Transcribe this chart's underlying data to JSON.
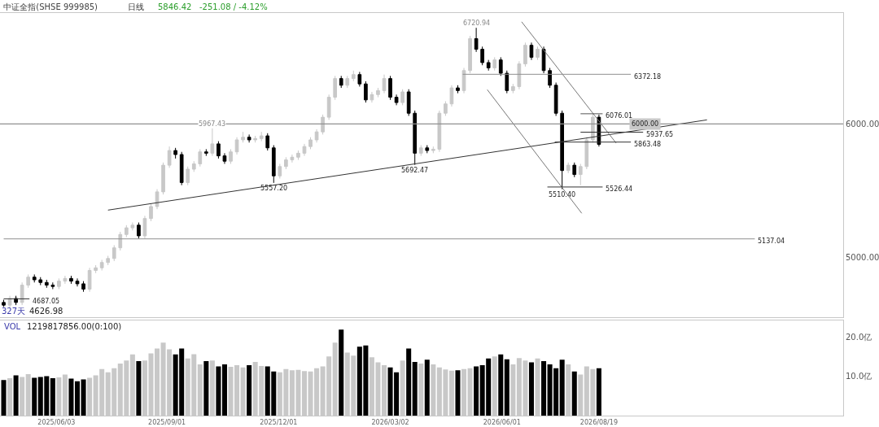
{
  "chart_data": [
    {
      "type": "candlestick",
      "title": "中证全指(SHSE 999985)",
      "annotations": [
        "日线",
        "5846.42",
        "-251.08 / -4.12%",
        "327天",
        "4626.98",
        {
          "text": "6720.94",
          "x": "2026-05-11",
          "y": 6720.94
        },
        {
          "text": "5967.43",
          "x": "2025-10-08",
          "y": 5967.43
        },
        {
          "text": "5557.20",
          "x": "2025-11-27",
          "y": 5557.2
        },
        {
          "text": "5692.47",
          "x": "2026-03-22",
          "y": 5692.47
        },
        {
          "text": "5510.40",
          "x": "2026-07-20",
          "y": 5510.4
        }
      ],
      "x": [
        "2025-04-21",
        "2025-04-26",
        "2025-05-01",
        "2025-05-06",
        "2025-05-11",
        "2025-05-16",
        "2025-05-21",
        "2025-05-26",
        "2025-05-31",
        "2025-06-05",
        "2025-06-10",
        "2025-06-15",
        "2025-06-20",
        "2025-06-25",
        "2025-06-30",
        "2025-07-05",
        "2025-07-10",
        "2025-07-15",
        "2025-07-20",
        "2025-07-25",
        "2025-07-30",
        "2025-08-04",
        "2025-08-09",
        "2025-08-14",
        "2025-08-19",
        "2025-08-24",
        "2025-08-29",
        "2025-09-03",
        "2025-09-08",
        "2025-09-13",
        "2025-09-18",
        "2025-09-23",
        "2025-09-28",
        "2025-10-03",
        "2025-10-08",
        "2025-10-13",
        "2025-10-18",
        "2025-10-23",
        "2025-10-28",
        "2025-11-02",
        "2025-11-07",
        "2025-11-12",
        "2025-11-17",
        "2025-11-22",
        "2025-11-27",
        "2025-12-02",
        "2025-12-07",
        "2025-12-12",
        "2025-12-17",
        "2025-12-22",
        "2025-12-27",
        "2026-01-01",
        "2026-01-06",
        "2026-01-11",
        "2026-01-16",
        "2026-01-21",
        "2026-01-26",
        "2026-01-31",
        "2026-02-05",
        "2026-02-10",
        "2026-02-15",
        "2026-02-20",
        "2026-02-25",
        "2026-03-02",
        "2026-03-07",
        "2026-03-12",
        "2026-03-17",
        "2026-03-22",
        "2026-03-27",
        "2026-04-01",
        "2026-04-06",
        "2026-04-11",
        "2026-04-16",
        "2026-04-21",
        "2026-04-26",
        "2026-05-01",
        "2026-05-06",
        "2026-05-11",
        "2026-05-16",
        "2026-05-21",
        "2026-05-26",
        "2026-05-31",
        "2026-06-05",
        "2026-06-10",
        "2026-06-15",
        "2026-06-20",
        "2026-06-25",
        "2026-06-30",
        "2026-07-05",
        "2026-07-10",
        "2026-07-15",
        "2026-07-20",
        "2026-07-25",
        "2026-07-30",
        "2026-08-04",
        "2026-08-09",
        "2026-08-14",
        "2026-08-19"
      ],
      "ohlc": [
        [
          4660,
          4680,
          4626.98,
          4640
        ],
        [
          4640,
          4710,
          4620,
          4690
        ],
        [
          4690,
          4710,
          4640,
          4660
        ],
        [
          4660,
          4810,
          4640,
          4790
        ],
        [
          4790,
          4870,
          4770,
          4850
        ],
        [
          4850,
          4870,
          4810,
          4830
        ],
        [
          4830,
          4850,
          4790,
          4810
        ],
        [
          4810,
          4830,
          4770,
          4790
        ],
        [
          4790,
          4810,
          4760,
          4780
        ],
        [
          4780,
          4840,
          4760,
          4820
        ],
        [
          4820,
          4860,
          4800,
          4840
        ],
        [
          4840,
          4860,
          4800,
          4820
        ],
        [
          4820,
          4840,
          4780,
          4800
        ],
        [
          4800,
          4820,
          4740,
          4760
        ],
        [
          4760,
          4920,
          4740,
          4900
        ],
        [
          4900,
          4940,
          4880,
          4920
        ],
        [
          4920,
          4980,
          4900,
          4960
        ],
        [
          4960,
          5010,
          4940,
          4990
        ],
        [
          4990,
          5090,
          4970,
          5070
        ],
        [
          5070,
          5190,
          5050,
          5170
        ],
        [
          5170,
          5240,
          5150,
          5220
        ],
        [
          5220,
          5260,
          5200,
          5240
        ],
        [
          5240,
          5260,
          5140,
          5160
        ],
        [
          5160,
          5310,
          5140,
          5290
        ],
        [
          5290,
          5400,
          5270,
          5380
        ],
        [
          5380,
          5510,
          5360,
          5490
        ],
        [
          5490,
          5710,
          5470,
          5690
        ],
        [
          5690,
          5830,
          5670,
          5800
        ],
        [
          5800,
          5820,
          5740,
          5770
        ],
        [
          5770,
          5790,
          5540,
          5560
        ],
        [
          5560,
          5680,
          5540,
          5660
        ],
        [
          5660,
          5720,
          5640,
          5700
        ],
        [
          5700,
          5810,
          5680,
          5790
        ],
        [
          5790,
          5810,
          5760,
          5780
        ],
        [
          5780,
          5967.43,
          5760,
          5850
        ],
        [
          5850,
          5870,
          5740,
          5760
        ],
        [
          5760,
          5780,
          5700,
          5720
        ],
        [
          5720,
          5810,
          5700,
          5790
        ],
        [
          5790,
          5900,
          5770,
          5880
        ],
        [
          5880,
          5940,
          5860,
          5900
        ],
        [
          5900,
          5920,
          5860,
          5880
        ],
        [
          5880,
          5910,
          5860,
          5890
        ],
        [
          5890,
          5940,
          5870,
          5910
        ],
        [
          5910,
          5930,
          5800,
          5820
        ],
        [
          5820,
          5840,
          5557.2,
          5610
        ],
        [
          5610,
          5700,
          5590,
          5680
        ],
        [
          5680,
          5750,
          5660,
          5730
        ],
        [
          5730,
          5770,
          5710,
          5750
        ],
        [
          5750,
          5800,
          5730,
          5780
        ],
        [
          5780,
          5850,
          5760,
          5830
        ],
        [
          5830,
          5900,
          5810,
          5880
        ],
        [
          5880,
          5960,
          5860,
          5940
        ],
        [
          5940,
          6070,
          5920,
          6050
        ],
        [
          6050,
          6220,
          6030,
          6200
        ],
        [
          6200,
          6360,
          6180,
          6340
        ],
        [
          6340,
          6360,
          6270,
          6290
        ],
        [
          6290,
          6360,
          6270,
          6340
        ],
        [
          6340,
          6400,
          6320,
          6370
        ],
        [
          6370,
          6390,
          6280,
          6300
        ],
        [
          6300,
          6320,
          6160,
          6180
        ],
        [
          6180,
          6240,
          6160,
          6220
        ],
        [
          6220,
          6270,
          6200,
          6250
        ],
        [
          6250,
          6370,
          6230,
          6340
        ],
        [
          6340,
          6360,
          6180,
          6200
        ],
        [
          6200,
          6220,
          6140,
          6160
        ],
        [
          6160,
          6260,
          6140,
          6240
        ],
        [
          6240,
          6260,
          6060,
          6080
        ],
        [
          6080,
          6100,
          5692.47,
          5780
        ],
        [
          5780,
          5840,
          5760,
          5820
        ],
        [
          5820,
          5840,
          5780,
          5800
        ],
        [
          5800,
          5830,
          5780,
          5810
        ],
        [
          5810,
          6100,
          5790,
          6080
        ],
        [
          6080,
          6170,
          6060,
          6150
        ],
        [
          6150,
          6290,
          6130,
          6270
        ],
        [
          6270,
          6290,
          6230,
          6250
        ],
        [
          6250,
          6420,
          6230,
          6400
        ],
        [
          6400,
          6660,
          6380,
          6640
        ],
        [
          6640,
          6720.94,
          6540,
          6560
        ],
        [
          6560,
          6580,
          6440,
          6460
        ],
        [
          6460,
          6480,
          6400,
          6420
        ],
        [
          6420,
          6500,
          6400,
          6480
        ],
        [
          6480,
          6500,
          6360,
          6380
        ],
        [
          6380,
          6400,
          6230,
          6250
        ],
        [
          6250,
          6300,
          6230,
          6280
        ],
        [
          6280,
          6470,
          6260,
          6450
        ],
        [
          6450,
          6610,
          6430,
          6590
        ],
        [
          6590,
          6610,
          6480,
          6500
        ],
        [
          6500,
          6580,
          6480,
          6560
        ],
        [
          6560,
          6580,
          6380,
          6400
        ],
        [
          6400,
          6420,
          6270,
          6290
        ],
        [
          6290,
          6310,
          6060,
          6080
        ],
        [
          6080,
          6100,
          5510.4,
          5650
        ],
        [
          5650,
          5710,
          5630,
          5690
        ],
        [
          5690,
          5710,
          5600,
          5620
        ],
        [
          5620,
          5700,
          5540,
          5680
        ],
        [
          5680,
          5900,
          5660,
          5880
        ],
        [
          5880,
          6076.01,
          5860,
          6050
        ],
        [
          6050,
          6070,
          5830,
          5846.42
        ]
      ],
      "colors": [
        "#000000",
        "#c8c8c8",
        "#000000",
        "#c8c8c8",
        "#c8c8c8",
        "#000000",
        "#000000",
        "#000000",
        "#000000",
        "#c8c8c8",
        "#c8c8c8",
        "#000000",
        "#000000",
        "#000000",
        "#c8c8c8",
        "#c8c8c8",
        "#c8c8c8",
        "#c8c8c8",
        "#c8c8c8",
        "#c8c8c8",
        "#c8c8c8",
        "#c8c8c8",
        "#000000",
        "#c8c8c8",
        "#c8c8c8",
        "#c8c8c8",
        "#c8c8c8",
        "#c8c8c8",
        "#000000",
        "#000000",
        "#c8c8c8",
        "#c8c8c8",
        "#c8c8c8",
        "#000000",
        "#c8c8c8",
        "#000000",
        "#000000",
        "#c8c8c8",
        "#c8c8c8",
        "#c8c8c8",
        "#000000",
        "#c8c8c8",
        "#c8c8c8",
        "#000000",
        "#000000",
        "#c8c8c8",
        "#c8c8c8",
        "#c8c8c8",
        "#c8c8c8",
        "#c8c8c8",
        "#c8c8c8",
        "#c8c8c8",
        "#c8c8c8",
        "#c8c8c8",
        "#c8c8c8",
        "#000000",
        "#c8c8c8",
        "#c8c8c8",
        "#000000",
        "#000000",
        "#c8c8c8",
        "#c8c8c8",
        "#c8c8c8",
        "#000000",
        "#000000",
        "#c8c8c8",
        "#000000",
        "#000000",
        "#c8c8c8",
        "#000000",
        "#c8c8c8",
        "#c8c8c8",
        "#c8c8c8",
        "#c8c8c8",
        "#000000",
        "#c8c8c8",
        "#c8c8c8",
        "#000000",
        "#000000",
        "#000000",
        "#c8c8c8",
        "#000000",
        "#000000",
        "#c8c8c8",
        "#c8c8c8",
        "#c8c8c8",
        "#000000",
        "#c8c8c8",
        "#000000",
        "#000000",
        "#000000",
        "#000000",
        "#c8c8c8",
        "#000000",
        "#c8c8c8",
        "#c8c8c8",
        "#c8c8c8",
        "#000000"
      ],
      "series": [
        {
          "type": "line",
          "color": "#333333",
          "x": [
            "2025-07-15",
            "2026-11-15"
          ],
          "values": [
            5353,
            6030
          ]
        },
        {
          "type": "line",
          "color": "#777777",
          "x": [
            "2026-06-17",
            "2026-09-02"
          ],
          "values": [
            6766,
            5856
          ]
        },
        {
          "type": "line",
          "color": "#777777",
          "x": [
            "2026-05-20",
            "2026-08-05"
          ],
          "values": [
            6257,
            5329
          ]
        },
        {
          "type": "line",
          "name": "6372.18",
          "color": "#909090",
          "x": [
            "2026-04-30",
            "2026-09-14"
          ],
          "values": [
            6372.18,
            6372.18
          ]
        },
        {
          "type": "line",
          "name": "6076.01",
          "color": "#555555",
          "x": [
            "2026-08-04",
            "2026-08-22"
          ],
          "values": [
            6076.01,
            6076.01
          ]
        },
        {
          "type": "line",
          "name": "5937.65",
          "color": "#333333",
          "x": [
            "2026-08-04",
            "2026-09-24"
          ],
          "values": [
            5937.65,
            5937.65
          ]
        },
        {
          "type": "line",
          "name": "5863.48",
          "color": "#333333",
          "x": [
            "2026-07-14",
            "2026-09-14"
          ],
          "values": [
            5863.48,
            5863.48
          ]
        },
        {
          "type": "line",
          "name": "5526.44",
          "color": "#333333",
          "x": [
            "2026-07-08",
            "2026-08-22"
          ],
          "values": [
            5526.44,
            5526.44
          ]
        },
        {
          "type": "line",
          "name": "4687.05",
          "color": "#333333",
          "x": [
            "2025-04-21",
            "2025-05-12"
          ],
          "values": [
            4687.05,
            4687.05
          ]
        },
        {
          "type": "line",
          "name": "5137.04",
          "color": "#909090",
          "x": [
            "2025-04-21",
            "2026-12-24"
          ],
          "values": [
            5137.04,
            5137.04
          ]
        }
      ],
      "ref_lines": [
        {
          "axis": "y",
          "value": 6000,
          "label": "6000.00",
          "color": "#909090"
        }
      ],
      "xlim": [
        "2025-04-18",
        "2027-03-06"
      ],
      "ylim": [
        4551,
        6832
      ],
      "yticks": [
        {
          "value": 6000,
          "label": "6000.00"
        },
        {
          "value": 5000,
          "label": "5000.00"
        }
      ],
      "tick_labels": "y"
    },
    {
      "type": "bar",
      "annotations": [
        "VOL",
        "1219817856.00(0:100)"
      ],
      "x": [
        "2025-04-21",
        "2025-04-26",
        "2025-05-01",
        "2025-05-06",
        "2025-05-11",
        "2025-05-16",
        "2025-05-21",
        "2025-05-26",
        "2025-05-31",
        "2025-06-05",
        "2025-06-10",
        "2025-06-15",
        "2025-06-20",
        "2025-06-25",
        "2025-06-30",
        "2025-07-05",
        "2025-07-10",
        "2025-07-15",
        "2025-07-20",
        "2025-07-25",
        "2025-07-30",
        "2025-08-04",
        "2025-08-09",
        "2025-08-14",
        "2025-08-19",
        "2025-08-24",
        "2025-08-29",
        "2025-09-03",
        "2025-09-08",
        "2025-09-13",
        "2025-09-18",
        "2025-09-23",
        "2025-09-28",
        "2025-10-03",
        "2025-10-08",
        "2025-10-13",
        "2025-10-18",
        "2025-10-23",
        "2025-10-28",
        "2025-11-02",
        "2025-11-07",
        "2025-11-12",
        "2025-11-17",
        "2025-11-22",
        "2025-11-27",
        "2025-12-02",
        "2025-12-07",
        "2025-12-12",
        "2025-12-17",
        "2025-12-22",
        "2025-12-27",
        "2026-01-01",
        "2026-01-06",
        "2026-01-11",
        "2026-01-16",
        "2026-01-21",
        "2026-01-26",
        "2026-01-31",
        "2026-02-05",
        "2026-02-10",
        "2026-02-15",
        "2026-02-20",
        "2026-02-25",
        "2026-03-02",
        "2026-03-07",
        "2026-03-12",
        "2026-03-17",
        "2026-03-22",
        "2026-03-27",
        "2026-04-01",
        "2026-04-06",
        "2026-04-11",
        "2026-04-16",
        "2026-04-21",
        "2026-04-26",
        "2026-05-01",
        "2026-05-06",
        "2026-05-11",
        "2026-05-16",
        "2026-05-21",
        "2026-05-26",
        "2026-05-31",
        "2026-06-05",
        "2026-06-10",
        "2026-06-15",
        "2026-06-20",
        "2026-06-25",
        "2026-06-30",
        "2026-07-05",
        "2026-07-10",
        "2026-07-15",
        "2026-07-20",
        "2026-07-25",
        "2026-07-30",
        "2026-08-04",
        "2026-08-09",
        "2026-08-14",
        "2026-08-19"
      ],
      "values": [
        9.0,
        9.5,
        10.2,
        9.8,
        10.5,
        9.6,
        9.8,
        10.0,
        9.5,
        9.7,
        10.4,
        9.4,
        8.7,
        9.2,
        9.6,
        10.2,
        11.8,
        11.0,
        12.0,
        13.2,
        14.0,
        15.5,
        13.8,
        14.0,
        15.8,
        17.0,
        18.5,
        16.8,
        15.5,
        17.0,
        14.5,
        15.6,
        13.0,
        13.8,
        14.0,
        12.5,
        13.0,
        12.4,
        12.8,
        12.2,
        12.8,
        13.6,
        12.6,
        12.5,
        11.2,
        11.0,
        11.8,
        11.5,
        11.6,
        11.3,
        11.2,
        12.0,
        12.5,
        15.0,
        18.5,
        21.8,
        16.0,
        15.2,
        17.5,
        17.8,
        14.8,
        13.5,
        12.8,
        12.2,
        11.0,
        14.0,
        17.0,
        13.6,
        13.2,
        14.2,
        13.0,
        12.2,
        11.7,
        11.4,
        11.5,
        11.8,
        12.0,
        12.5,
        12.8,
        14.5,
        15.0,
        15.5,
        14.3,
        13.0,
        14.6,
        14.0,
        13.5,
        14.5,
        13.8,
        13.0,
        12.0,
        14.2,
        13.0,
        11.2,
        10.4,
        12.5,
        11.8,
        12.0
      ],
      "colors": [
        "#000000",
        "#c8c8c8",
        "#000000",
        "#c8c8c8",
        "#c8c8c8",
        "#000000",
        "#000000",
        "#000000",
        "#000000",
        "#c8c8c8",
        "#c8c8c8",
        "#000000",
        "#000000",
        "#000000",
        "#c8c8c8",
        "#c8c8c8",
        "#c8c8c8",
        "#c8c8c8",
        "#c8c8c8",
        "#c8c8c8",
        "#c8c8c8",
        "#c8c8c8",
        "#000000",
        "#c8c8c8",
        "#c8c8c8",
        "#c8c8c8",
        "#c8c8c8",
        "#c8c8c8",
        "#000000",
        "#000000",
        "#c8c8c8",
        "#c8c8c8",
        "#c8c8c8",
        "#000000",
        "#c8c8c8",
        "#000000",
        "#000000",
        "#c8c8c8",
        "#c8c8c8",
        "#c8c8c8",
        "#000000",
        "#c8c8c8",
        "#c8c8c8",
        "#000000",
        "#000000",
        "#c8c8c8",
        "#c8c8c8",
        "#c8c8c8",
        "#c8c8c8",
        "#c8c8c8",
        "#c8c8c8",
        "#c8c8c8",
        "#c8c8c8",
        "#c8c8c8",
        "#c8c8c8",
        "#000000",
        "#c8c8c8",
        "#c8c8c8",
        "#000000",
        "#000000",
        "#c8c8c8",
        "#c8c8c8",
        "#c8c8c8",
        "#000000",
        "#000000",
        "#c8c8c8",
        "#000000",
        "#000000",
        "#c8c8c8",
        "#000000",
        "#c8c8c8",
        "#c8c8c8",
        "#c8c8c8",
        "#c8c8c8",
        "#000000",
        "#c8c8c8",
        "#c8c8c8",
        "#000000",
        "#000000",
        "#000000",
        "#c8c8c8",
        "#000000",
        "#000000",
        "#c8c8c8",
        "#c8c8c8",
        "#c8c8c8",
        "#000000",
        "#c8c8c8",
        "#000000",
        "#000000",
        "#000000",
        "#000000",
        "#c8c8c8",
        "#000000",
        "#c8c8c8",
        "#c8c8c8",
        "#c8c8c8",
        "#000000"
      ],
      "xlim": [
        "2025-04-18",
        "2027-03-06"
      ],
      "ylim": [
        0,
        24.1
      ],
      "xticks": [
        {
          "value": "2025-06-03",
          "label": "2025/06/03"
        },
        {
          "value": "2025-09-01",
          "label": "2025/09/01"
        },
        {
          "value": "2025-12-01",
          "label": "2025/12/01"
        },
        {
          "value": "2026-03-02",
          "label": "2026/03/02"
        },
        {
          "value": "2026-06-01",
          "label": "2026/06/01"
        },
        {
          "value": "2026-08-19",
          "label": "2026/08/19"
        }
      ],
      "yticks": [
        {
          "value": 10,
          "label": "10.0亿"
        },
        {
          "value": 20,
          "label": "20.0亿"
        }
      ]
    }
  ]
}
